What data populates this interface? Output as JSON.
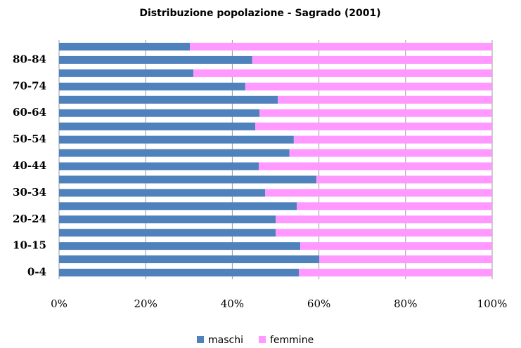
{
  "chart_data": {
    "type": "stacked-barh",
    "title": "Distribuzione popolazione - Sagrado (2001)",
    "categories": [
      "0-4",
      null,
      "10-15",
      null,
      "20-24",
      null,
      "30-34",
      null,
      "40-44",
      null,
      "50-54",
      null,
      "60-64",
      null,
      "70-74",
      null,
      "80-84",
      null
    ],
    "series": [
      {
        "name": "maschi",
        "color": "#4f81bd",
        "values": [
          55.4,
          60.1,
          55.7,
          50.0,
          50.0,
          54.9,
          47.6,
          59.4,
          46.1,
          53.2,
          54.2,
          45.3,
          46.3,
          50.5,
          43.0,
          31.0,
          44.6,
          30.2
        ]
      },
      {
        "name": "femmine",
        "color": "#ff99ff",
        "values": [
          44.6,
          39.9,
          44.3,
          50.0,
          50.0,
          45.1,
          52.4,
          40.6,
          53.9,
          46.8,
          45.8,
          54.7,
          53.7,
          49.5,
          57.0,
          69.0,
          55.4,
          69.8
        ]
      }
    ],
    "xlim": [
      0,
      100
    ],
    "xticks": [
      {
        "value": 0,
        "label": "0%"
      },
      {
        "value": 20,
        "label": "20%"
      },
      {
        "value": 40,
        "label": "40%"
      },
      {
        "value": 60,
        "label": "60%"
      },
      {
        "value": 80,
        "label": "80%"
      },
      {
        "value": 100,
        "label": "100%"
      }
    ],
    "grid": true,
    "legend": "bottom"
  }
}
